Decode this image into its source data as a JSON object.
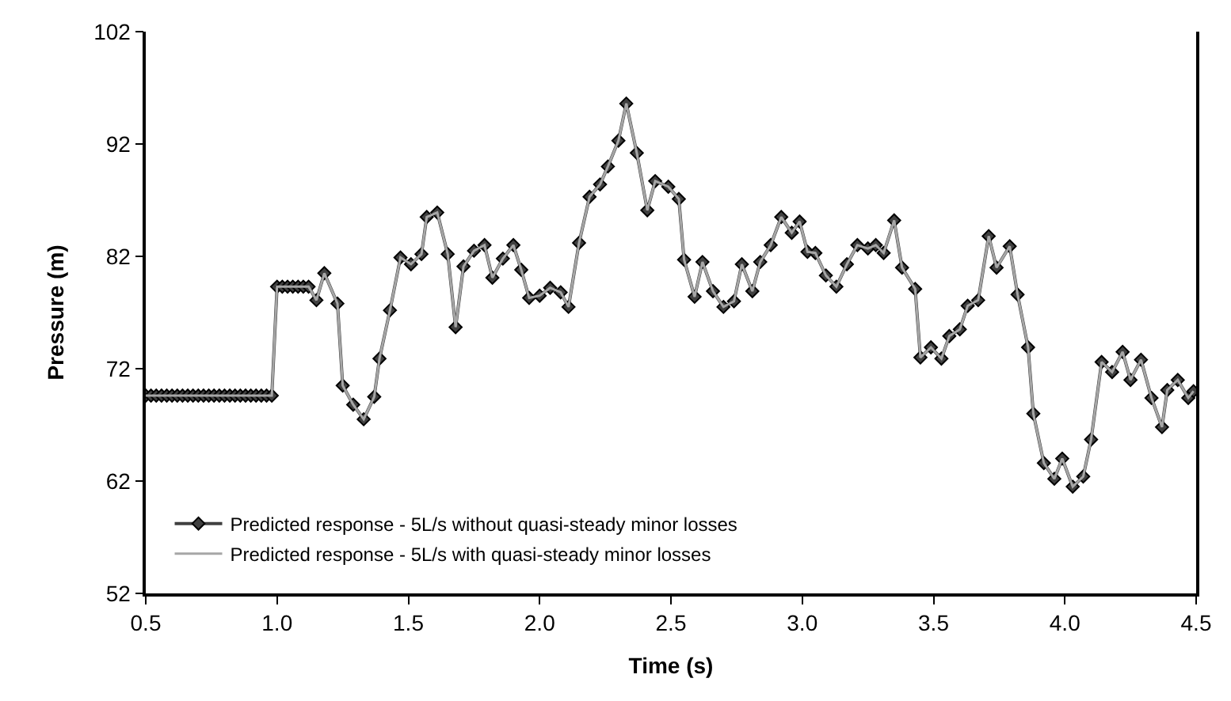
{
  "chart_data": {
    "type": "line",
    "xlabel": "Time (s)",
    "ylabel": "Pressure (m)",
    "x": [
      0.5,
      0.52,
      0.54,
      0.56,
      0.58,
      0.6,
      0.62,
      0.64,
      0.66,
      0.68,
      0.7,
      0.72,
      0.74,
      0.76,
      0.78,
      0.8,
      0.82,
      0.84,
      0.86,
      0.88,
      0.9,
      0.92,
      0.94,
      0.96,
      0.98,
      1.0,
      1.02,
      1.04,
      1.06,
      1.08,
      1.1,
      1.12,
      1.15,
      1.18,
      1.23,
      1.25,
      1.29,
      1.33,
      1.37,
      1.39,
      1.43,
      1.47,
      1.51,
      1.55,
      1.57,
      1.61,
      1.65,
      1.68,
      1.71,
      1.75,
      1.79,
      1.82,
      1.86,
      1.9,
      1.93,
      1.96,
      2.0,
      2.04,
      2.08,
      2.11,
      2.15,
      2.19,
      2.23,
      2.26,
      2.3,
      2.33,
      2.37,
      2.41,
      2.44,
      2.49,
      2.53,
      2.55,
      2.59,
      2.62,
      2.66,
      2.7,
      2.74,
      2.77,
      2.81,
      2.84,
      2.88,
      2.92,
      2.96,
      2.99,
      3.02,
      3.05,
      3.09,
      3.13,
      3.17,
      3.21,
      3.25,
      3.28,
      3.31,
      3.35,
      3.38,
      3.43,
      3.45,
      3.49,
      3.53,
      3.56,
      3.6,
      3.63,
      3.67,
      3.71,
      3.74,
      3.79,
      3.82,
      3.86,
      3.88,
      3.92,
      3.96,
      3.99,
      4.03,
      4.07,
      4.1,
      4.14,
      4.18,
      4.22,
      4.25,
      4.29,
      4.33,
      4.37,
      4.39,
      4.43,
      4.47,
      4.49
    ],
    "series": [
      {
        "name": "Predicted response - 5L/s without quasi-steady minor losses",
        "color": "#404040",
        "marker": "diamond",
        "values": [
          69.6,
          69.6,
          69.6,
          69.6,
          69.6,
          69.6,
          69.6,
          69.6,
          69.6,
          69.6,
          69.6,
          69.6,
          69.6,
          69.6,
          69.6,
          69.6,
          69.6,
          69.6,
          69.6,
          69.6,
          69.6,
          69.6,
          69.6,
          69.6,
          69.6,
          79.3,
          79.3,
          79.3,
          79.3,
          79.3,
          79.3,
          79.3,
          78.1,
          80.5,
          77.8,
          70.5,
          68.8,
          67.5,
          69.5,
          72.9,
          77.2,
          81.9,
          81.3,
          82.2,
          85.5,
          85.9,
          82.2,
          75.7,
          81.1,
          82.5,
          83.0,
          80.1,
          81.8,
          83.0,
          80.8,
          78.3,
          78.5,
          79.2,
          78.8,
          77.5,
          83.2,
          87.3,
          88.4,
          90.0,
          92.3,
          95.6,
          91.2,
          86.1,
          88.7,
          88.2,
          87.1,
          81.7,
          78.4,
          81.5,
          78.9,
          77.5,
          78.0,
          81.3,
          78.9,
          81.5,
          83.0,
          85.5,
          84.1,
          85.1,
          82.4,
          82.3,
          80.3,
          79.3,
          81.3,
          83.0,
          82.7,
          83.0,
          82.3,
          85.2,
          81.0,
          79.1,
          73.0,
          73.9,
          72.9,
          74.9,
          75.5,
          77.6,
          78.1,
          83.8,
          81.0,
          82.9,
          78.6,
          73.9,
          68.0,
          63.6,
          62.2,
          64.0,
          61.5,
          62.4,
          65.7,
          72.6,
          71.7,
          73.5,
          71.0,
          72.8,
          69.4,
          66.8,
          70.1,
          71.0,
          69.4,
          70.0
        ]
      },
      {
        "name": "Predicted response - 5L/s with quasi-steady minor losses",
        "color": "#a6a6a6",
        "marker": "none",
        "values": [
          69.6,
          69.6,
          69.6,
          69.6,
          69.6,
          69.6,
          69.6,
          69.6,
          69.6,
          69.6,
          69.6,
          69.6,
          69.6,
          69.6,
          69.6,
          69.6,
          69.6,
          69.6,
          69.6,
          69.6,
          69.6,
          69.6,
          69.6,
          69.6,
          69.6,
          79.3,
          79.3,
          79.3,
          79.3,
          79.3,
          79.3,
          79.3,
          78.1,
          80.5,
          77.8,
          70.5,
          68.8,
          67.5,
          69.5,
          72.9,
          77.2,
          81.9,
          81.3,
          82.2,
          85.5,
          85.9,
          82.2,
          75.7,
          81.1,
          82.5,
          83.0,
          80.1,
          81.8,
          83.0,
          80.8,
          78.3,
          78.5,
          79.2,
          78.8,
          77.5,
          83.2,
          87.3,
          88.4,
          90.0,
          92.3,
          95.6,
          91.2,
          86.1,
          88.7,
          88.2,
          87.1,
          81.7,
          78.4,
          81.5,
          78.9,
          77.5,
          78.0,
          81.3,
          78.9,
          81.5,
          83.0,
          85.5,
          84.1,
          85.1,
          82.4,
          82.3,
          80.3,
          79.3,
          81.3,
          83.0,
          82.7,
          83.0,
          82.3,
          85.2,
          81.0,
          79.1,
          73.0,
          73.9,
          72.9,
          74.9,
          75.5,
          77.6,
          78.1,
          83.8,
          81.0,
          82.9,
          78.6,
          73.9,
          68.0,
          63.6,
          62.2,
          64.0,
          61.5,
          62.4,
          65.7,
          72.6,
          71.7,
          73.5,
          71.0,
          72.8,
          69.4,
          66.8,
          70.1,
          71.0,
          69.4,
          70.0
        ]
      }
    ],
    "xlim": [
      0.5,
      4.5
    ],
    "xticks": [
      {
        "value": 0.5,
        "label": "0.5"
      },
      {
        "value": 1.0,
        "label": "1.0"
      },
      {
        "value": 1.5,
        "label": "1.5"
      },
      {
        "value": 2.0,
        "label": "2.0"
      },
      {
        "value": 2.5,
        "label": "2.5"
      },
      {
        "value": 3.0,
        "label": "3.0"
      },
      {
        "value": 3.5,
        "label": "3.5"
      },
      {
        "value": 4.0,
        "label": "4.0"
      },
      {
        "value": 4.5,
        "label": "4.5"
      }
    ],
    "ylim": [
      52,
      102
    ],
    "yticks": [
      52,
      62,
      72,
      82,
      92,
      102
    ],
    "grid": false,
    "legend": "bottom left",
    "line_style": "solid"
  }
}
